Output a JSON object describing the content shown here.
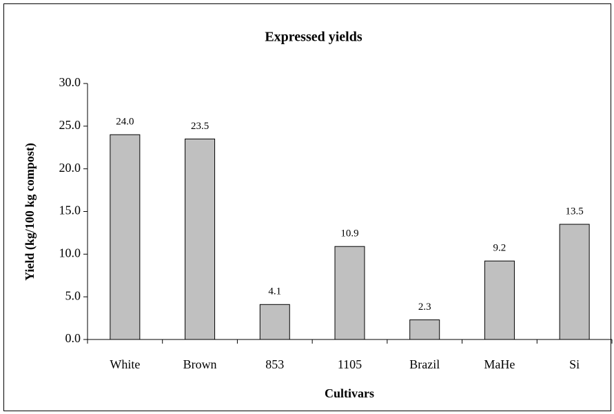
{
  "chart_data": {
    "type": "bar",
    "title": "Expressed yields",
    "xlabel": "Cultivars",
    "ylabel": "Yield (kg/100 kg compost)",
    "categories": [
      "White",
      "Brown",
      "853",
      "1105",
      "Brazil",
      "MaHe",
      "Si"
    ],
    "values": [
      24.0,
      23.5,
      4.1,
      10.9,
      2.3,
      9.2,
      13.5
    ],
    "value_labels": [
      "24.0",
      "23.5",
      "4.1",
      "10.9",
      "2.3",
      "9.2",
      "13.5"
    ],
    "color": "#c0c0c0",
    "ylim": [
      0,
      30
    ],
    "yticks": [
      {
        "value": 0,
        "label": "0.0"
      },
      {
        "value": 5,
        "label": "5.0"
      },
      {
        "value": 10,
        "label": "10.0"
      },
      {
        "value": 15,
        "label": "15.0"
      },
      {
        "value": 20,
        "label": "20.0"
      },
      {
        "value": 25,
        "label": "25.0"
      },
      {
        "value": 30,
        "label": "30.0"
      }
    ],
    "grid": false
  }
}
